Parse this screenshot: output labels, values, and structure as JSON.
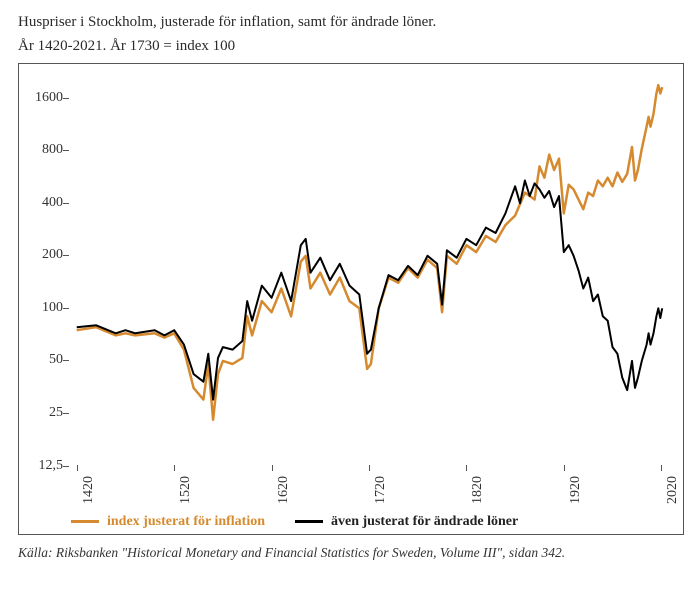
{
  "title_line1": "Huspriser i Stockholm, justerade för inflation, samt för ändrade löner.",
  "title_line2": "År 1420-2021.  År 1730 = index 100",
  "source": "Källa: Riksbanken \"Historical Monetary and Financial Statistics for Sweden, Volume III\", sidan 342.",
  "chart": {
    "type": "line",
    "xlim": [
      1410,
      2030
    ],
    "ylim_log": [
      12.5,
      2200
    ],
    "y_ticks": [
      12.5,
      25,
      50,
      100,
      200,
      400,
      800,
      1600
    ],
    "y_tick_labels": [
      "12,5",
      "25",
      "50",
      "100",
      "200",
      "400",
      "800",
      "1600"
    ],
    "x_ticks": [
      1420,
      1520,
      1620,
      1720,
      1820,
      1920,
      2020
    ],
    "background_color": "#ffffff",
    "border_color": "#555555",
    "tick_color": "#555555",
    "text_color": "#2a2a2a",
    "title_fontsize": 15,
    "axis_fontsize": 14,
    "legend_fontsize": 14,
    "series": [
      {
        "name": "index justerat för inflation",
        "color": "#d68a2f",
        "width": 2.5,
        "data": [
          [
            1420,
            75
          ],
          [
            1440,
            78
          ],
          [
            1460,
            70
          ],
          [
            1470,
            72
          ],
          [
            1480,
            70
          ],
          [
            1500,
            72
          ],
          [
            1510,
            68
          ],
          [
            1520,
            72
          ],
          [
            1530,
            58
          ],
          [
            1540,
            35
          ],
          [
            1550,
            30
          ],
          [
            1555,
            48
          ],
          [
            1560,
            23
          ],
          [
            1565,
            42
          ],
          [
            1570,
            50
          ],
          [
            1580,
            48
          ],
          [
            1590,
            52
          ],
          [
            1595,
            90
          ],
          [
            1600,
            70
          ],
          [
            1610,
            110
          ],
          [
            1620,
            95
          ],
          [
            1630,
            130
          ],
          [
            1640,
            90
          ],
          [
            1650,
            185
          ],
          [
            1655,
            200
          ],
          [
            1660,
            130
          ],
          [
            1670,
            160
          ],
          [
            1680,
            120
          ],
          [
            1690,
            150
          ],
          [
            1700,
            110
          ],
          [
            1710,
            100
          ],
          [
            1718,
            45
          ],
          [
            1722,
            48
          ],
          [
            1730,
            100
          ],
          [
            1740,
            150
          ],
          [
            1750,
            140
          ],
          [
            1760,
            170
          ],
          [
            1770,
            150
          ],
          [
            1780,
            190
          ],
          [
            1790,
            170
          ],
          [
            1795,
            95
          ],
          [
            1800,
            200
          ],
          [
            1810,
            180
          ],
          [
            1820,
            230
          ],
          [
            1830,
            210
          ],
          [
            1840,
            260
          ],
          [
            1850,
            240
          ],
          [
            1860,
            300
          ],
          [
            1870,
            340
          ],
          [
            1880,
            460
          ],
          [
            1890,
            420
          ],
          [
            1895,
            650
          ],
          [
            1900,
            560
          ],
          [
            1905,
            760
          ],
          [
            1910,
            620
          ],
          [
            1915,
            720
          ],
          [
            1920,
            350
          ],
          [
            1925,
            510
          ],
          [
            1930,
            480
          ],
          [
            1935,
            420
          ],
          [
            1940,
            370
          ],
          [
            1945,
            460
          ],
          [
            1950,
            440
          ],
          [
            1955,
            540
          ],
          [
            1960,
            500
          ],
          [
            1965,
            560
          ],
          [
            1970,
            500
          ],
          [
            1975,
            600
          ],
          [
            1980,
            530
          ],
          [
            1985,
            590
          ],
          [
            1990,
            840
          ],
          [
            1993,
            540
          ],
          [
            1996,
            620
          ],
          [
            2000,
            820
          ],
          [
            2005,
            1100
          ],
          [
            2007,
            1250
          ],
          [
            2009,
            1100
          ],
          [
            2012,
            1300
          ],
          [
            2015,
            1700
          ],
          [
            2017,
            1900
          ],
          [
            2019,
            1700
          ],
          [
            2021,
            1850
          ]
        ]
      },
      {
        "name": "även justerat för ändrade löner",
        "color": "#000000",
        "width": 2.0,
        "data": [
          [
            1420,
            78
          ],
          [
            1440,
            80
          ],
          [
            1460,
            72
          ],
          [
            1470,
            75
          ],
          [
            1480,
            72
          ],
          [
            1500,
            75
          ],
          [
            1510,
            70
          ],
          [
            1520,
            75
          ],
          [
            1530,
            62
          ],
          [
            1540,
            42
          ],
          [
            1550,
            38
          ],
          [
            1555,
            55
          ],
          [
            1560,
            30
          ],
          [
            1565,
            52
          ],
          [
            1570,
            60
          ],
          [
            1580,
            58
          ],
          [
            1590,
            65
          ],
          [
            1595,
            110
          ],
          [
            1600,
            85
          ],
          [
            1610,
            135
          ],
          [
            1620,
            115
          ],
          [
            1630,
            160
          ],
          [
            1640,
            110
          ],
          [
            1650,
            230
          ],
          [
            1655,
            250
          ],
          [
            1660,
            160
          ],
          [
            1670,
            195
          ],
          [
            1680,
            145
          ],
          [
            1690,
            180
          ],
          [
            1700,
            135
          ],
          [
            1710,
            120
          ],
          [
            1718,
            55
          ],
          [
            1722,
            58
          ],
          [
            1730,
            100
          ],
          [
            1740,
            155
          ],
          [
            1750,
            145
          ],
          [
            1760,
            175
          ],
          [
            1770,
            155
          ],
          [
            1780,
            200
          ],
          [
            1790,
            180
          ],
          [
            1795,
            105
          ],
          [
            1800,
            215
          ],
          [
            1810,
            195
          ],
          [
            1820,
            250
          ],
          [
            1830,
            230
          ],
          [
            1840,
            290
          ],
          [
            1850,
            270
          ],
          [
            1860,
            350
          ],
          [
            1870,
            500
          ],
          [
            1875,
            400
          ],
          [
            1880,
            540
          ],
          [
            1885,
            440
          ],
          [
            1890,
            520
          ],
          [
            1895,
            480
          ],
          [
            1900,
            430
          ],
          [
            1905,
            470
          ],
          [
            1910,
            380
          ],
          [
            1915,
            440
          ],
          [
            1920,
            210
          ],
          [
            1925,
            230
          ],
          [
            1930,
            200
          ],
          [
            1935,
            165
          ],
          [
            1940,
            130
          ],
          [
            1945,
            150
          ],
          [
            1950,
            110
          ],
          [
            1955,
            120
          ],
          [
            1960,
            90
          ],
          [
            1965,
            85
          ],
          [
            1970,
            60
          ],
          [
            1975,
            55
          ],
          [
            1980,
            40
          ],
          [
            1985,
            34
          ],
          [
            1990,
            50
          ],
          [
            1993,
            35
          ],
          [
            1996,
            40
          ],
          [
            2000,
            50
          ],
          [
            2005,
            62
          ],
          [
            2007,
            72
          ],
          [
            2009,
            62
          ],
          [
            2012,
            72
          ],
          [
            2015,
            90
          ],
          [
            2017,
            100
          ],
          [
            2019,
            88
          ],
          [
            2021,
            100
          ]
        ]
      }
    ],
    "legend": [
      {
        "label": "index justerat för inflation",
        "color": "#d68a2f",
        "bold": true
      },
      {
        "label": "även justerat för ändrade löner",
        "color": "#000000",
        "bold": true
      }
    ]
  }
}
